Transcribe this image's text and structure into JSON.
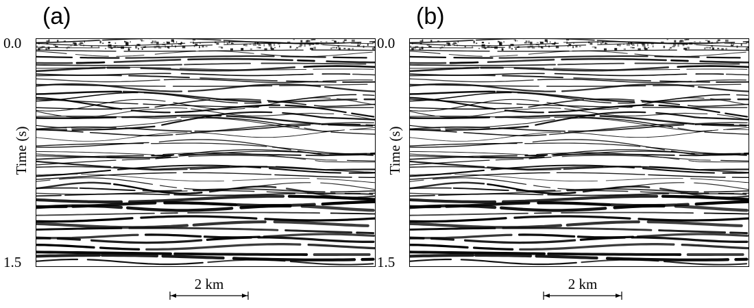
{
  "figure": {
    "panels": [
      {
        "id": "a",
        "label": "(a)",
        "ylabel": "Time (s)",
        "y_ticks": [
          "0.0",
          "1.5"
        ],
        "scale_label": "2 km",
        "seed": 17
      },
      {
        "id": "b",
        "label": "(b)",
        "ylabel": "Time (s)",
        "y_ticks": [
          "0.0",
          "1.5"
        ],
        "scale_label": "2 km",
        "seed": 17
      }
    ],
    "colors": {
      "ink": "#000000",
      "background": "#ffffff"
    }
  }
}
